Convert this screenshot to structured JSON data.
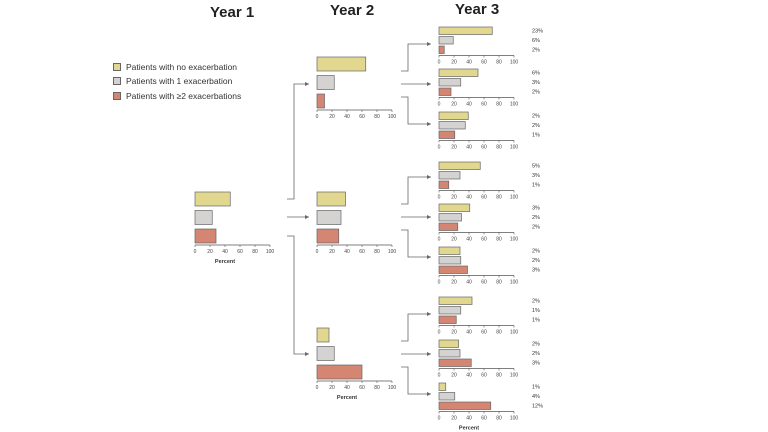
{
  "titles": {
    "year1": "Year 1",
    "year2": "Year 2",
    "year3": "Year 3"
  },
  "legend": [
    {
      "label": "Patients with no exacerbation",
      "color": "#e2d78e"
    },
    {
      "label": "Patients with 1 exacerbation",
      "color": "#d5d3d1"
    },
    {
      "label": "Patients with ≥2 exacerbations",
      "color": "#d48673"
    }
  ],
  "colors": {
    "axis": "#555555",
    "bar_stroke": "#666666",
    "arrow": "#666666"
  },
  "chart_data": {
    "type": "bar",
    "orientation": "horizontal",
    "xlim": [
      0,
      100
    ],
    "ticks": [
      "0",
      "20",
      "40",
      "60",
      "80",
      "100"
    ],
    "series_names": [
      "Patients with no exacerbation",
      "Patients with 1 exacerbation",
      "Patients with ≥2 exacerbations"
    ],
    "year1": {
      "values": [
        47,
        23,
        28
      ],
      "xlabel": "Percent"
    },
    "year2": [
      {
        "values": [
          65,
          23,
          10
        ],
        "xlabel": ""
      },
      {
        "values": [
          38,
          32,
          29
        ],
        "xlabel": ""
      },
      {
        "values": [
          16,
          23,
          60
        ],
        "xlabel": "Percent"
      }
    ],
    "year3": [
      {
        "values": [
          71,
          19,
          7
        ],
        "pct": [
          "23%",
          "6%",
          "2%"
        ],
        "xlabel": ""
      },
      {
        "values": [
          52,
          29,
          16
        ],
        "pct": [
          "6%",
          "3%",
          "2%"
        ],
        "xlabel": ""
      },
      {
        "values": [
          39,
          35,
          21
        ],
        "pct": [
          "2%",
          "2%",
          "1%"
        ],
        "xlabel": ""
      },
      {
        "values": [
          55,
          28,
          13
        ],
        "pct": [
          "5%",
          "3%",
          "1%"
        ],
        "xlabel": ""
      },
      {
        "values": [
          41,
          30,
          25
        ],
        "pct": [
          "3%",
          "2%",
          "2%"
        ],
        "xlabel": ""
      },
      {
        "values": [
          28,
          29,
          38
        ],
        "pct": [
          "2%",
          "2%",
          "3%"
        ],
        "xlabel": ""
      },
      {
        "values": [
          44,
          29,
          23
        ],
        "pct": [
          "2%",
          "1%",
          "1%"
        ],
        "xlabel": ""
      },
      {
        "values": [
          26,
          28,
          43
        ],
        "pct": [
          "2%",
          "2%",
          "3%"
        ],
        "xlabel": ""
      },
      {
        "values": [
          9,
          21,
          69
        ],
        "pct": [
          "1%",
          "4%",
          "12%"
        ],
        "xlabel": "Percent"
      }
    ]
  }
}
